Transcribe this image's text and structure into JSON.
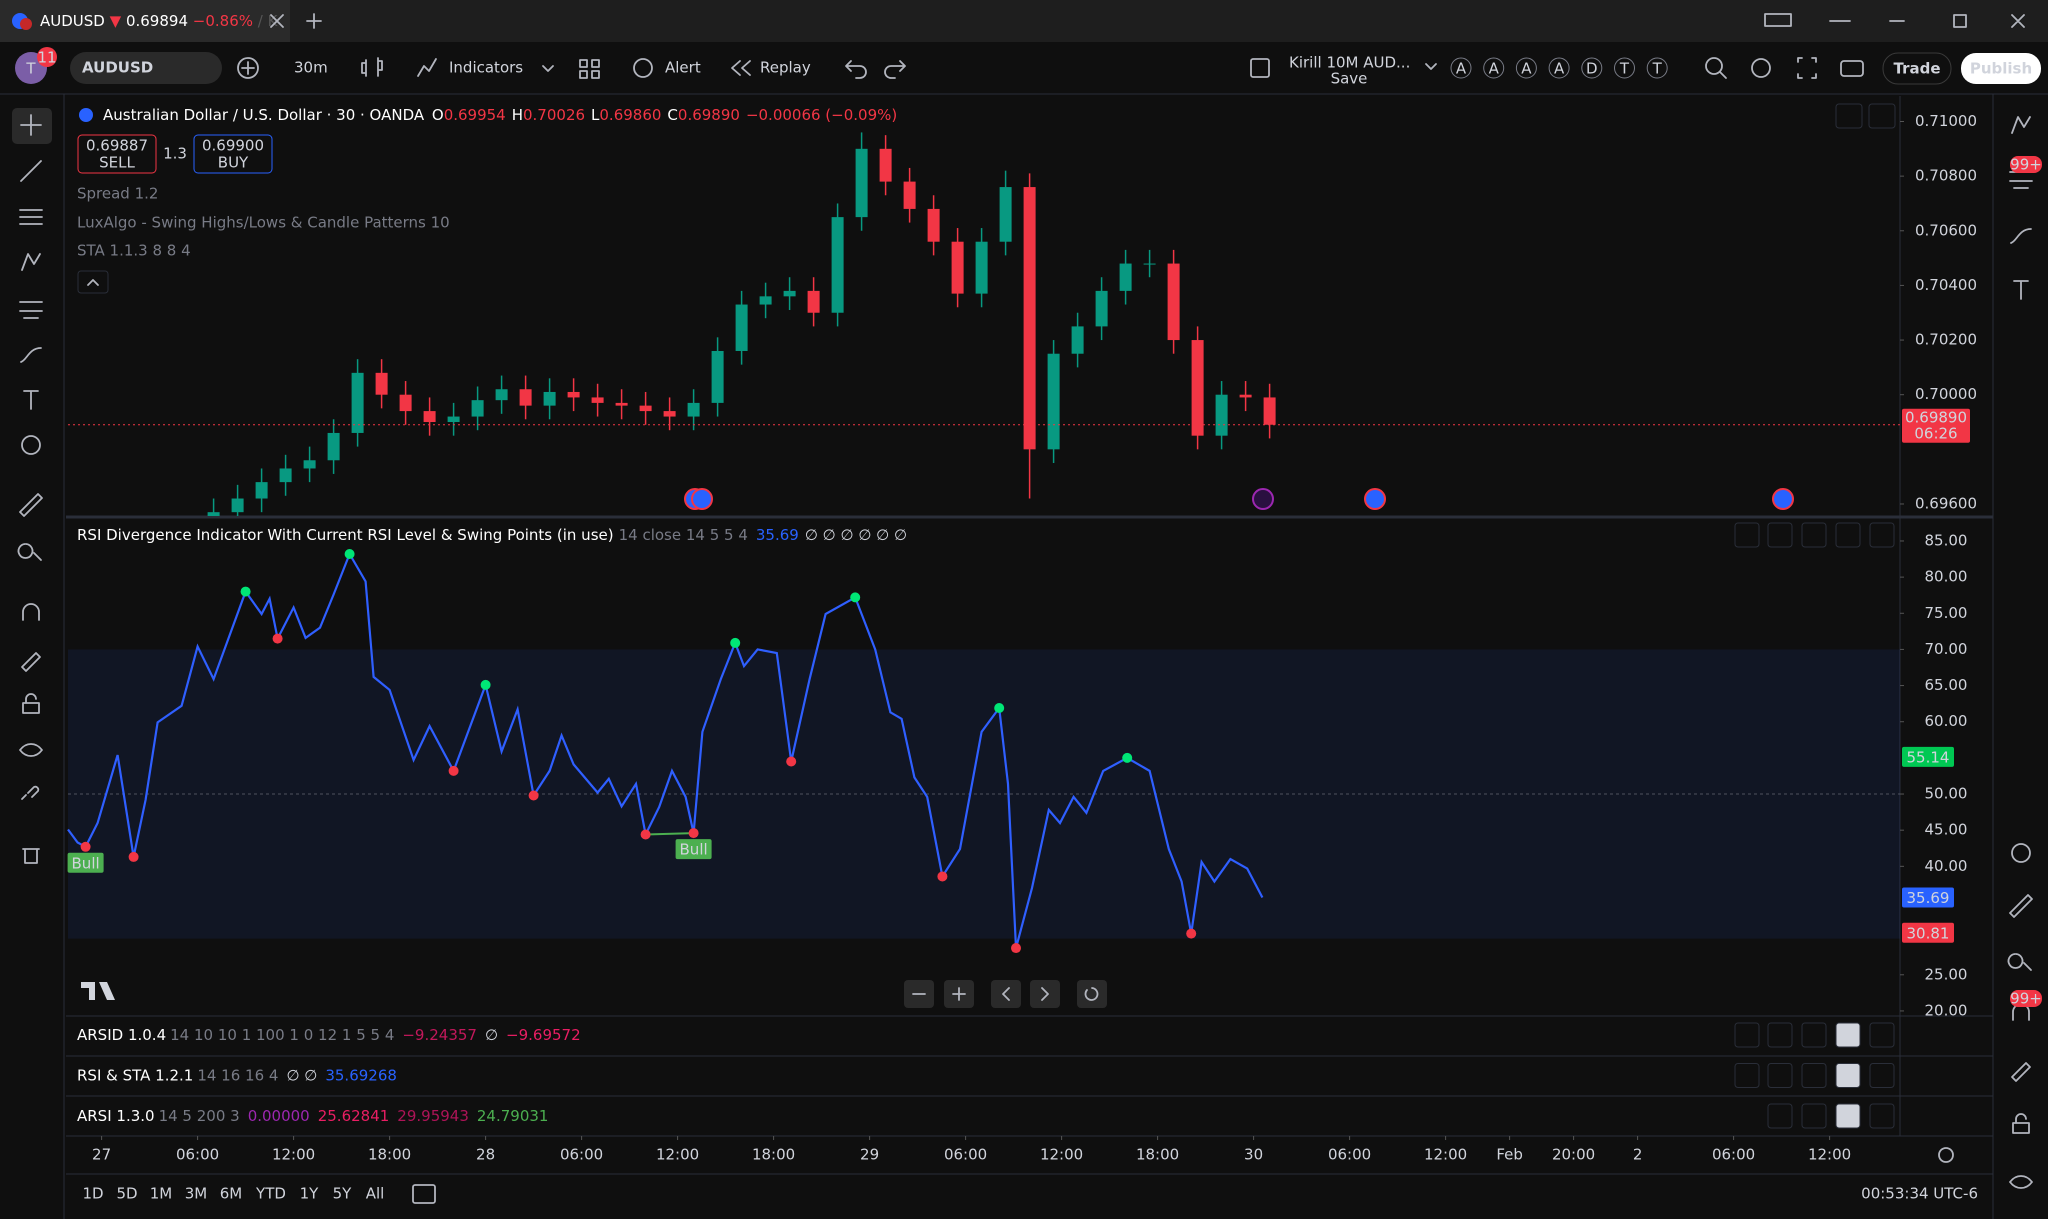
{
  "tab": {
    "symbol": "AUDUSD",
    "arrow": "▼",
    "price": "0.69894",
    "change": "−0.86%",
    "extra": "/ K"
  },
  "toolbar": {
    "avatar": "T",
    "badge": "11",
    "symbol": "AUDUSD",
    "interval": "30m",
    "indicators": "Indicators",
    "alert": "Alert",
    "replay": "Replay",
    "layout_name": "Kirill 10M AUD...",
    "layout_save": "Save",
    "alert_letters": [
      "A",
      "A",
      "A",
      "A",
      "D",
      "T",
      "T"
    ],
    "trade": "Trade",
    "publish": "Publish"
  },
  "legend": {
    "title": "Australian Dollar / U.S. Dollar · 30 · OANDA",
    "ohlc": [
      {
        "key": "O",
        "value": "0.69954"
      },
      {
        "key": "H",
        "value": "0.70026"
      },
      {
        "key": "L",
        "value": "0.69860"
      },
      {
        "key": "C",
        "value": "0.69890"
      }
    ],
    "change": "−0.00066 (−0.09%)",
    "sell_price": "0.69887",
    "sell": "SELL",
    "spread": "1.3",
    "buy_price": "0.69900",
    "buy": "BUY",
    "indicators": [
      "Spread 1.2",
      "LuxAlgo - Swing Highs/Lows & Candle Patterns 10",
      "STA 1.1.3 8 8 4"
    ]
  },
  "rsi_legend": {
    "name": "RSI Divergence Indicator With Current RSI Level & Swing Points (in use)",
    "params": "14 close 14 5 5 4",
    "value": "35.69",
    "extras": "∅ ∅ ∅ ∅ ∅ ∅"
  },
  "panes": [
    {
      "name": "ARSID 1.0.4",
      "params": "14 10 10 1 100 1 0 12 1 5 5 4",
      "values": [
        {
          "text": "−9.24357",
          "color": "#c2185b"
        },
        {
          "text": "∅",
          "color": "#d1d4dc"
        },
        {
          "text": "−9.69572",
          "color": "#e91e63"
        }
      ]
    },
    {
      "name": "RSI & STA 1.2.1",
      "params": "14 16 16 4",
      "values": [
        {
          "text": "∅ ∅",
          "color": "#d1d4dc"
        },
        {
          "text": "35.69268",
          "color": "#2962ff"
        }
      ]
    },
    {
      "name": "ARSI 1.3.0",
      "params": "14 5 200 3",
      "values": [
        {
          "text": "0.00000",
          "color": "#9c27b0"
        },
        {
          "text": "25.62841",
          "color": "#e91e63"
        },
        {
          "text": "29.95943",
          "color": "#ad1457"
        },
        {
          "text": "24.79031",
          "color": "#4caf50"
        }
      ]
    }
  ],
  "range_buttons": [
    "1D",
    "5D",
    "1M",
    "3M",
    "6M",
    "YTD",
    "1Y",
    "5Y",
    "All"
  ],
  "clock": "00:53:34 UTC-6",
  "sidebar_badges": [
    "99+",
    "99+"
  ],
  "chart_data": [
    {
      "type": "candlestick",
      "up_color": "#089981",
      "down_color": "#f23645",
      "xlim": [
        -4.2,
        224.8
      ],
      "ylim": [
        0.69556,
        0.71086
      ],
      "yticks": [
        {
          "value": 0.71,
          "label": "0.71000"
        },
        {
          "value": 0.708,
          "label": "0.70800"
        },
        {
          "value": 0.706,
          "label": "0.70600"
        },
        {
          "value": 0.704,
          "label": "0.70400"
        },
        {
          "value": 0.702,
          "label": "0.70200"
        },
        {
          "value": 0.7,
          "label": "0.70000"
        },
        {
          "value": 0.696,
          "label": "0.69600"
        }
      ],
      "x": [
        14,
        17,
        20,
        23,
        26,
        29,
        32,
        35,
        38,
        41,
        44,
        47,
        50,
        53,
        56,
        59,
        62,
        65,
        68,
        71,
        74,
        77,
        80,
        83,
        86,
        89,
        92,
        95,
        98,
        101,
        104,
        107,
        110,
        113,
        116,
        119,
        122,
        125,
        128,
        131,
        134,
        137,
        140,
        143,
        146
      ],
      "open": [
        0.6953,
        0.6957,
        0.6962,
        0.6968,
        0.6973,
        0.6976,
        0.6986,
        0.7008,
        0.7,
        0.6994,
        0.699,
        0.6992,
        0.6998,
        0.7002,
        0.6996,
        0.7001,
        0.6999,
        0.6997,
        0.6996,
        0.6994,
        0.6992,
        0.6997,
        0.7016,
        0.7033,
        0.7036,
        0.7038,
        0.703,
        0.7065,
        0.709,
        0.7078,
        0.7068,
        0.7056,
        0.7037,
        0.7056,
        0.7076,
        0.698,
        0.7015,
        0.7025,
        0.7038,
        0.7048,
        0.7048,
        0.702,
        0.6985,
        0.7,
        0.6999
      ],
      "high": [
        0.6962,
        0.6967,
        0.6973,
        0.6978,
        0.6981,
        0.6991,
        0.7013,
        0.7013,
        0.7005,
        0.6999,
        0.6997,
        0.7003,
        0.7007,
        0.7007,
        0.7006,
        0.7006,
        0.7004,
        0.7002,
        0.7001,
        0.6999,
        0.7002,
        0.7021,
        0.7038,
        0.7041,
        0.7043,
        0.7043,
        0.707,
        0.7096,
        0.7095,
        0.7083,
        0.7073,
        0.7061,
        0.7061,
        0.7082,
        0.7081,
        0.702,
        0.703,
        0.7043,
        0.7053,
        0.7053,
        0.7053,
        0.7025,
        0.7005,
        0.7005,
        0.7004
      ],
      "low": [
        0.6948,
        0.6952,
        0.6957,
        0.6963,
        0.6968,
        0.6971,
        0.6981,
        0.6995,
        0.6989,
        0.6985,
        0.6985,
        0.6987,
        0.6993,
        0.6991,
        0.6991,
        0.6994,
        0.6992,
        0.6991,
        0.6989,
        0.6987,
        0.6987,
        0.6992,
        0.7011,
        0.7028,
        0.7031,
        0.7025,
        0.7025,
        0.706,
        0.7073,
        0.7063,
        0.7051,
        0.7032,
        0.7032,
        0.7051,
        0.6962,
        0.6975,
        0.701,
        0.702,
        0.7033,
        0.7043,
        0.7015,
        0.698,
        0.698,
        0.6994,
        0.6984
      ],
      "close": [
        0.6957,
        0.6962,
        0.6968,
        0.6973,
        0.6976,
        0.6986,
        0.7008,
        0.7,
        0.6994,
        0.699,
        0.6992,
        0.6998,
        0.7002,
        0.6996,
        0.7001,
        0.6999,
        0.6997,
        0.6996,
        0.6994,
        0.6992,
        0.6997,
        0.7016,
        0.7033,
        0.7036,
        0.7038,
        0.703,
        0.7065,
        0.709,
        0.7078,
        0.7068,
        0.7056,
        0.7037,
        0.7056,
        0.7076,
        0.698,
        0.7015,
        0.7025,
        0.7038,
        0.7048,
        0.7048,
        0.702,
        0.6985,
        0.7,
        0.6999,
        0.6989
      ],
      "last_price": {
        "value": 0.6989,
        "label": "0.69890",
        "countdown": "06:26",
        "color": "#f23645"
      }
    },
    {
      "type": "line",
      "color": "#2f5fff",
      "xlim": [
        -4.2,
        224.8
      ],
      "ylim": [
        19.3,
        87.9
      ],
      "yticks": [
        {
          "value": 85,
          "label": "85.00"
        },
        {
          "value": 80,
          "label": "80.00"
        },
        {
          "value": 75,
          "label": "75.00"
        },
        {
          "value": 70,
          "label": "70.00"
        },
        {
          "value": 65,
          "label": "65.00"
        },
        {
          "value": 60,
          "label": "60.00"
        },
        {
          "value": 50,
          "label": "50.00"
        },
        {
          "value": 45,
          "label": "45.00"
        },
        {
          "value": 40,
          "label": "40.00"
        },
        {
          "value": 25,
          "label": "25.00"
        },
        {
          "value": 20,
          "label": "20.00"
        }
      ],
      "xticks": [
        {
          "value": 0,
          "label": "27"
        },
        {
          "value": 12,
          "label": "06:00"
        },
        {
          "value": 24,
          "label": "12:00"
        },
        {
          "value": 36,
          "label": "18:00"
        },
        {
          "value": 48,
          "label": "28"
        },
        {
          "value": 60,
          "label": "06:00"
        },
        {
          "value": 72,
          "label": "12:00"
        },
        {
          "value": 84,
          "label": "18:00"
        },
        {
          "value": 96,
          "label": "29"
        },
        {
          "value": 108,
          "label": "06:00"
        },
        {
          "value": 120,
          "label": "12:00"
        },
        {
          "value": 132,
          "label": "18:00"
        },
        {
          "value": 144,
          "label": "30"
        },
        {
          "value": 156,
          "label": "06:00"
        },
        {
          "value": 168,
          "label": "12:00"
        },
        {
          "value": 176,
          "label": "Feb"
        },
        {
          "value": 184,
          "label": "20:00"
        },
        {
          "value": 192,
          "label": "2"
        },
        {
          "value": 204,
          "label": "06:00"
        },
        {
          "value": 216,
          "label": "12:00"
        }
      ],
      "band": [
        30,
        70
      ],
      "midline": 50,
      "x": [
        -4.2,
        -3,
        -2,
        -0.5,
        2,
        4,
        5.5,
        7,
        10,
        12,
        14,
        18,
        20,
        21,
        22,
        24,
        25.5,
        27.3,
        29,
        31,
        33,
        34,
        36,
        39,
        41,
        44,
        48,
        50,
        52,
        54,
        56,
        57.5,
        59,
        62,
        63.4,
        65,
        66.8,
        68,
        69.7,
        71.3,
        73,
        74,
        75.1,
        77.4,
        79.2,
        80.3,
        82,
        84.4,
        86.2,
        88.5,
        90.5,
        94.2,
        96.7,
        98.6,
        100,
        101.6,
        103.2,
        105.1,
        107.3,
        110,
        112.2,
        113.3,
        114.3,
        116.3,
        118.4,
        119.8,
        121.5,
        123.1,
        125.2,
        128.2,
        131,
        133.4,
        135,
        136.2,
        137.5,
        139.1,
        141.1,
        143.2,
        145.1
      ],
      "values": [
        45.1,
        43.3,
        42.7,
        46,
        55.4,
        41.3,
        49.2,
        59.9,
        62.2,
        70.4,
        65.9,
        78,
        74.9,
        77,
        71.5,
        75.8,
        71.6,
        73,
        77.6,
        83.2,
        79.4,
        66.2,
        64.4,
        54.7,
        59.4,
        53.2,
        65.1,
        55.9,
        61.7,
        49.8,
        53.2,
        58.1,
        54.1,
        50.2,
        52.1,
        48.3,
        51.4,
        44.4,
        48.2,
        53.2,
        49.6,
        44.6,
        58.6,
        65.9,
        70.9,
        67.7,
        70,
        69.5,
        54.5,
        65.9,
        74.9,
        77.2,
        70,
        61.3,
        60.4,
        52.3,
        49.6,
        38.6,
        42.4,
        58.6,
        61.9,
        51.4,
        28.7,
        37,
        47.8,
        46,
        49.6,
        47.4,
        53.2,
        55,
        53.2,
        42.4,
        37.9,
        30.7,
        40.6,
        37.9,
        41,
        39.7,
        35.69
      ],
      "swing_highs": {
        "color": "#00e676",
        "x": [
          18,
          31,
          48,
          79.2,
          94.2,
          112.2,
          128.2
        ],
        "values": [
          78,
          83.2,
          65.1,
          70.9,
          77.2,
          61.9,
          55
        ]
      },
      "swing_lows": {
        "color": "#f23645",
        "x": [
          -2,
          4,
          22,
          44,
          54,
          68,
          74,
          86.2,
          105.1,
          114.3,
          136.2
        ],
        "values": [
          42.7,
          41.3,
          71.5,
          53.2,
          49.8,
          44.4,
          44.6,
          54.5,
          38.6,
          28.7,
          30.7
        ]
      },
      "divergence_lines": [
        {
          "color": "#4caf50",
          "x": [
            68,
            74
          ],
          "values": [
            44.4,
            44.6
          ]
        }
      ],
      "annotations": [
        {
          "text": "Bull",
          "color": "#4caf50",
          "x": -2,
          "y": 42.7
        },
        {
          "text": "Bull",
          "color": "#4caf50",
          "x": 74,
          "y": 44.6
        }
      ],
      "level_labels": [
        {
          "value": 55.14,
          "color": "#00c853"
        },
        {
          "value": 35.69,
          "color": "#2962ff"
        },
        {
          "value": 30.81,
          "color": "#f23645"
        }
      ]
    }
  ]
}
